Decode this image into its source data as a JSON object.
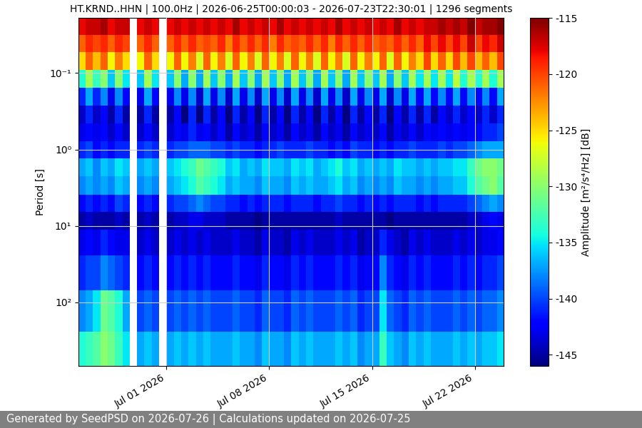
{
  "chart_data": {
    "type": "heatmap",
    "title": "HT.KRND..HHN | 100.0Hz | 2026-06-25T00:00:03 - 2026-07-23T22:30:01 | 1296 segments",
    "y_label": "Period [s]",
    "colorbar_label": "Amplitude [m²/s⁴/Hz] [dB]",
    "footer": "Generated by SeedPSD on 2026-07-26 | Calculations updated on 2026-07-25",
    "log": "y",
    "grid": true,
    "xlim": [
      "2026-06-25T00:00:03",
      "2026-07-23T22:30:01"
    ],
    "xticks": [
      {
        "value": "2026-07-01",
        "label": "Jul 01 2026"
      },
      {
        "value": "2026-07-08",
        "label": "Jul 08 2026"
      },
      {
        "value": "2026-07-15",
        "label": "Jul 15 2026"
      },
      {
        "value": "2026-07-22",
        "label": "Jul 22 2026"
      }
    ],
    "ylim": [
      680,
      0.019
    ],
    "yticks": [
      {
        "value": 0.1,
        "label": "10⁻¹"
      },
      {
        "value": 1,
        "label": "10⁰"
      },
      {
        "value": 10,
        "label": "10¹"
      },
      {
        "value": 100,
        "label": "10²"
      }
    ],
    "clim": [
      -146,
      -115
    ],
    "cticks": [
      -145,
      -140,
      -135,
      -130,
      -125,
      -120,
      -115
    ],
    "x": [
      "2026-06-25T00:00",
      "2026-06-25T12:00",
      "2026-06-26T00:00",
      "2026-06-26T12:00",
      "2026-06-27T00:00",
      "2026-06-27T12:00",
      "2026-06-28T00:00",
      "2026-06-28T12:00",
      "2026-06-29T00:00",
      "2026-06-29T12:00",
      "2026-06-30T00:00",
      "2026-06-30T12:00",
      "2026-07-01T00:00",
      "2026-07-01T12:00",
      "2026-07-02T00:00",
      "2026-07-02T12:00",
      "2026-07-03T00:00",
      "2026-07-03T12:00",
      "2026-07-04T00:00",
      "2026-07-04T12:00",
      "2026-07-05T00:00",
      "2026-07-05T12:00",
      "2026-07-06T00:00",
      "2026-07-06T12:00",
      "2026-07-07T00:00",
      "2026-07-07T12:00",
      "2026-07-08T00:00",
      "2026-07-08T12:00",
      "2026-07-09T00:00",
      "2026-07-09T12:00",
      "2026-07-10T00:00",
      "2026-07-10T12:00",
      "2026-07-11T00:00",
      "2026-07-11T12:00",
      "2026-07-12T00:00",
      "2026-07-12T12:00",
      "2026-07-13T00:00",
      "2026-07-13T12:00",
      "2026-07-14T00:00",
      "2026-07-14T12:00",
      "2026-07-15T00:00",
      "2026-07-15T12:00",
      "2026-07-16T00:00",
      "2026-07-16T12:00",
      "2026-07-17T00:00",
      "2026-07-17T12:00",
      "2026-07-18T00:00",
      "2026-07-18T12:00",
      "2026-07-19T00:00",
      "2026-07-19T12:00",
      "2026-07-20T00:00",
      "2026-07-20T12:00",
      "2026-07-21T00:00",
      "2026-07-21T12:00",
      "2026-07-22T00:00",
      "2026-07-22T12:00",
      "2026-07-23T00:00",
      "2026-07-23T12:00"
    ],
    "periods": [
      0.025,
      0.04,
      0.07,
      0.12,
      0.2,
      0.35,
      0.6,
      1.0,
      1.7,
      3,
      5,
      8.5,
      15,
      40,
      120,
      500
    ],
    "cells": [
      [
        -118,
        -117,
        -117,
        -116,
        -118,
        -117,
        -117,
        null,
        -118,
        -117,
        -118,
        null,
        -118,
        -117,
        -118,
        -117,
        -118,
        -117,
        -118,
        -117,
        -118,
        -116,
        -118,
        -117,
        -118,
        -117,
        -118,
        -116,
        -118,
        -117,
        -118,
        -117,
        -118,
        -117,
        -118,
        -116,
        -118,
        -117,
        -118,
        -117,
        -118,
        -117,
        -118,
        -116,
        -118,
        -117,
        -118,
        -117,
        -117,
        -116,
        -117,
        -116,
        -117,
        -115,
        -117,
        -116,
        -116,
        -115
      ],
      [
        -121,
        -119,
        -120,
        -119,
        -121,
        -119,
        -120,
        null,
        -121,
        -119,
        -121,
        null,
        -121,
        -119,
        -121,
        -119,
        -121,
        -120,
        -121,
        -119,
        -122,
        -119,
        -121,
        -119,
        -121,
        -119,
        -122,
        -119,
        -121,
        -120,
        -121,
        -119,
        -121,
        -119,
        -122,
        -119,
        -121,
        -119,
        -121,
        -119,
        -121,
        -120,
        -121,
        -119,
        -121,
        -119,
        -121,
        -118,
        -120,
        -118,
        -120,
        -118,
        -120,
        -117,
        -120,
        -118,
        -119,
        -117
      ],
      [
        -125,
        -121,
        -124,
        -121,
        -126,
        -122,
        -125,
        null,
        -126,
        -121,
        -125,
        null,
        -126,
        -121,
        -126,
        -122,
        -127,
        -121,
        -126,
        -122,
        -127,
        -121,
        -126,
        -122,
        -127,
        -121,
        -126,
        -122,
        -127,
        -121,
        -126,
        -122,
        -127,
        -121,
        -126,
        -122,
        -127,
        -121,
        -126,
        -122,
        -126,
        -121,
        -127,
        -121,
        -126,
        -122,
        -125,
        -120,
        -125,
        -121,
        -125,
        -120,
        -124,
        -120,
        -124,
        -121,
        -124,
        -120
      ],
      [
        -134,
        -129,
        -133,
        -130,
        -136,
        -130,
        -135,
        null,
        -136,
        -129,
        -135,
        null,
        -136,
        -130,
        -137,
        -130,
        -137,
        -129,
        -136,
        -130,
        -137,
        -129,
        -136,
        -130,
        -137,
        -129,
        -136,
        -130,
        -137,
        -129,
        -136,
        -130,
        -137,
        -129,
        -136,
        -130,
        -137,
        -129,
        -136,
        -130,
        -136,
        -129,
        -137,
        -130,
        -136,
        -129,
        -135,
        -129,
        -135,
        -129,
        -135,
        -128,
        -134,
        -129,
        -134,
        -129,
        -134,
        -129
      ],
      [
        -141,
        -137,
        -141,
        -138,
        -143,
        -138,
        -142,
        null,
        -143,
        -137,
        -142,
        null,
        -143,
        -138,
        -143,
        -138,
        -144,
        -137,
        -143,
        -138,
        -144,
        -137,
        -143,
        -138,
        -144,
        -137,
        -143,
        -138,
        -144,
        -137,
        -143,
        -138,
        -144,
        -137,
        -143,
        -138,
        -144,
        -137,
        -143,
        -138,
        -143,
        -137,
        -144,
        -138,
        -143,
        -137,
        -142,
        -137,
        -142,
        -138,
        -142,
        -137,
        -142,
        -138,
        -142,
        -138,
        -142,
        -137
      ],
      [
        -144,
        -141,
        -144,
        -142,
        -145,
        -141,
        -145,
        null,
        -145,
        -141,
        -145,
        null,
        -145,
        -142,
        -146,
        -141,
        -146,
        -141,
        -145,
        -142,
        -146,
        -141,
        -145,
        -142,
        -146,
        -141,
        -145,
        -142,
        -146,
        -141,
        -145,
        -142,
        -146,
        -141,
        -145,
        -142,
        -146,
        -141,
        -145,
        -142,
        -145,
        -141,
        -146,
        -142,
        -145,
        -141,
        -145,
        -141,
        -145,
        -142,
        -144,
        -141,
        -144,
        -142,
        -144,
        -141,
        -144,
        -141
      ],
      [
        -143,
        -142,
        -143,
        -142,
        -144,
        -142,
        -144,
        null,
        -144,
        -142,
        -144,
        null,
        -144,
        -142,
        -143,
        -141,
        -143,
        -142,
        -144,
        -142,
        -145,
        -142,
        -144,
        -143,
        -145,
        -142,
        -144,
        -143,
        -145,
        -142,
        -144,
        -143,
        -145,
        -142,
        -144,
        -143,
        -145,
        -142,
        -144,
        -143,
        -144,
        -142,
        -145,
        -143,
        -144,
        -142,
        -144,
        -142,
        -143,
        -142,
        -143,
        -142,
        -143,
        -142,
        -142,
        -141,
        -141,
        -140
      ],
      [
        -141,
        -140,
        -142,
        -141,
        -142,
        -141,
        -141,
        null,
        -141,
        -140,
        -141,
        null,
        -141,
        -140,
        -140,
        -139,
        -139,
        -139,
        -140,
        -140,
        -141,
        -140,
        -141,
        -141,
        -142,
        -141,
        -141,
        -140,
        -141,
        -141,
        -141,
        -140,
        -141,
        -141,
        -142,
        -141,
        -142,
        -140,
        -141,
        -141,
        -142,
        -141,
        -142,
        -141,
        -141,
        -140,
        -141,
        -141,
        -141,
        -140,
        -141,
        -140,
        -140,
        -139,
        -138,
        -137,
        -137,
        -137
      ],
      [
        -137,
        -136,
        -138,
        -136,
        -137,
        -135,
        -136,
        null,
        -137,
        -136,
        -137,
        null,
        -136,
        -135,
        -134,
        -133,
        -131,
        -132,
        -133,
        -134,
        -136,
        -135,
        -137,
        -136,
        -137,
        -135,
        -136,
        -136,
        -137,
        -135,
        -136,
        -135,
        -137,
        -136,
        -135,
        -134,
        -136,
        -135,
        -137,
        -136,
        -137,
        -136,
        -137,
        -135,
        -136,
        -136,
        -137,
        -136,
        -137,
        -136,
        -136,
        -135,
        -135,
        -133,
        -131,
        -130,
        -130,
        -131
      ],
      [
        -138,
        -137,
        -138,
        -137,
        -138,
        -136,
        -137,
        null,
        -138,
        -137,
        -138,
        null,
        -137,
        -136,
        -135,
        -134,
        -132,
        -133,
        -134,
        -135,
        -137,
        -136,
        -137,
        -137,
        -138,
        -136,
        -137,
        -137,
        -138,
        -136,
        -137,
        -136,
        -137,
        -137,
        -136,
        -135,
        -137,
        -136,
        -138,
        -137,
        -138,
        -137,
        -138,
        -136,
        -137,
        -137,
        -138,
        -137,
        -138,
        -137,
        -137,
        -136,
        -136,
        -134,
        -132,
        -131,
        -130,
        -132
      ],
      [
        -142,
        -141,
        -142,
        -141,
        -142,
        -140,
        -141,
        null,
        -142,
        -141,
        -142,
        null,
        -141,
        -140,
        -140,
        -139,
        -138,
        -139,
        -140,
        -140,
        -141,
        -141,
        -142,
        -141,
        -142,
        -141,
        -141,
        -141,
        -142,
        -141,
        -141,
        -141,
        -142,
        -141,
        -141,
        -140,
        -141,
        -141,
        -142,
        -141,
        -142,
        -141,
        -142,
        -141,
        -141,
        -141,
        -142,
        -141,
        -142,
        -141,
        -141,
        -141,
        -141,
        -140,
        -139,
        -138,
        -137,
        -138
      ],
      [
        -145,
        -144,
        -145,
        -145,
        -145,
        -144,
        -145,
        null,
        -145,
        -144,
        -145,
        null,
        -145,
        -144,
        -144,
        -143,
        -143,
        -144,
        -144,
        -144,
        -145,
        -145,
        -145,
        -145,
        -146,
        -145,
        -145,
        -145,
        -145,
        -145,
        -145,
        -145,
        -145,
        -145,
        -145,
        -144,
        -145,
        -145,
        -145,
        -145,
        -145,
        -145,
        -146,
        -145,
        -145,
        -145,
        -145,
        -145,
        -145,
        -145,
        -145,
        -145,
        -145,
        -144,
        -144,
        -143,
        -142,
        -143
      ],
      [
        -143,
        -142,
        -143,
        -141,
        -142,
        -143,
        -143,
        null,
        -144,
        -143,
        -144,
        null,
        -144,
        -143,
        -144,
        -143,
        -144,
        -143,
        -144,
        -144,
        -144,
        -143,
        -144,
        -144,
        -145,
        -143,
        -144,
        -144,
        -145,
        -143,
        -144,
        -143,
        -144,
        -144,
        -144,
        -143,
        -144,
        -143,
        -145,
        -144,
        -144,
        -141,
        -143,
        -144,
        -145,
        -143,
        -144,
        -143,
        -144,
        -144,
        -144,
        -143,
        -144,
        -143,
        -144,
        -143,
        -143,
        -142
      ],
      [
        -141,
        -140,
        -140,
        -138,
        -139,
        -140,
        -141,
        null,
        -142,
        -141,
        -142,
        null,
        -142,
        -141,
        -142,
        -141,
        -142,
        -141,
        -142,
        -142,
        -142,
        -141,
        -142,
        -142,
        -143,
        -141,
        -142,
        -142,
        -143,
        -141,
        -142,
        -141,
        -142,
        -142,
        -142,
        -141,
        -142,
        -141,
        -143,
        -142,
        -142,
        -138,
        -141,
        -142,
        -143,
        -141,
        -142,
        -141,
        -142,
        -142,
        -142,
        -141,
        -142,
        -141,
        -142,
        -141,
        -141,
        -140
      ],
      [
        -138,
        -137,
        -135,
        -131,
        -132,
        -134,
        -137,
        null,
        -140,
        -139,
        -140,
        null,
        -140,
        -139,
        -140,
        -139,
        -140,
        -139,
        -140,
        -140,
        -140,
        -139,
        -140,
        -140,
        -141,
        -139,
        -140,
        -140,
        -141,
        -139,
        -140,
        -139,
        -140,
        -140,
        -140,
        -139,
        -140,
        -139,
        -141,
        -140,
        -140,
        -135,
        -139,
        -140,
        -141,
        -139,
        -140,
        -139,
        -140,
        -140,
        -140,
        -139,
        -140,
        -139,
        -140,
        -139,
        -139,
        -138
      ],
      [
        -134,
        -133,
        -132,
        -130,
        -131,
        -133,
        -135,
        null,
        -137,
        -136,
        -137,
        null,
        -137,
        -136,
        -137,
        -136,
        -137,
        -136,
        -137,
        -137,
        -137,
        -136,
        -137,
        -137,
        -138,
        -136,
        -137,
        -137,
        -138,
        -136,
        -137,
        -136,
        -137,
        -137,
        -137,
        -136,
        -137,
        -136,
        -138,
        -137,
        -137,
        -133,
        -136,
        -137,
        -138,
        -136,
        -137,
        -136,
        -137,
        -137,
        -137,
        -136,
        -137,
        -136,
        -137,
        -136,
        -136,
        -135
      ]
    ]
  }
}
